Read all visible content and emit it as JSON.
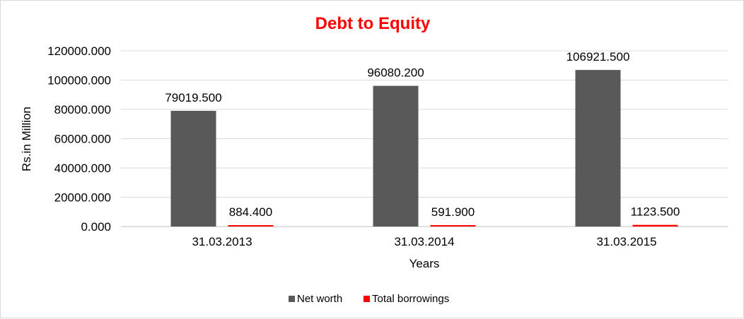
{
  "chart_data": {
    "type": "bar",
    "title": "Debt to Equity",
    "xlabel": "Years",
    "ylabel": "Rs.in Million",
    "categories": [
      "31.03.2013",
      "31.03.2014",
      "31.03.2015"
    ],
    "series": [
      {
        "name": "Net worth",
        "color": "#595959",
        "values": [
          79019.5,
          96080.2,
          106921.5
        ],
        "labels": [
          "79019.500",
          "96080.200",
          "106921.500"
        ]
      },
      {
        "name": "Total borrowings",
        "color": "#ff0000",
        "values": [
          884.4,
          591.9,
          1123.5
        ],
        "labels": [
          "884.400",
          "591.900",
          "1123.500"
        ]
      }
    ],
    "ylim": [
      0,
      120000
    ],
    "yticks": [
      "0.000",
      "20000.000",
      "40000.000",
      "60000.000",
      "80000.000",
      "100000.000",
      "120000.000"
    ],
    "ytick_values": [
      0,
      20000,
      40000,
      60000,
      80000,
      100000,
      120000
    ],
    "grid": true,
    "legend_position": "bottom",
    "colors": {
      "title": "#ff0000",
      "gridline": "#d9d9d9",
      "axis": "#bfbfbf"
    }
  }
}
